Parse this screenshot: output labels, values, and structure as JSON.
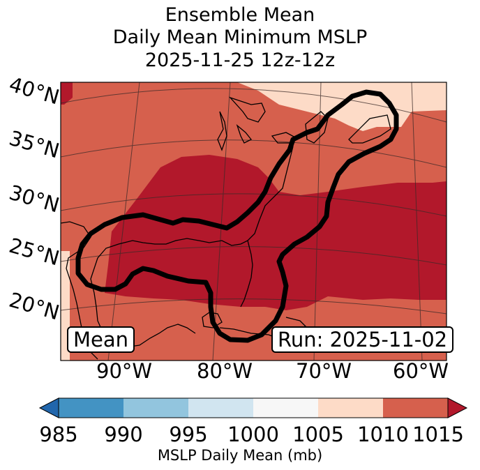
{
  "title": {
    "line1": "Ensemble Mean",
    "line2": "Daily Mean Minimum MSLP",
    "line3": "2025-11-25 12z-12z"
  },
  "map": {
    "latitude_labels": [
      "40°N",
      "35°N",
      "30°N",
      "25°N",
      "20°N"
    ],
    "longitude_labels": [
      "90°W",
      "80°W",
      "70°W",
      "60°W"
    ],
    "mean_box": "Mean",
    "run_box": "Run: 2025-11-02",
    "field_colors": {
      "1005-1010": "#fddbc7",
      "1010-1015": "#d6604d",
      "above-1015": "#b2182b"
    },
    "contour_color": "#000000"
  },
  "colorbar": {
    "label": "MSLP Daily Mean (mb)",
    "ticks": [
      "985",
      "990",
      "995",
      "1000",
      "1005",
      "1010",
      "1015"
    ],
    "colors": {
      "below": "#2166ac",
      "985-990": "#4393c3",
      "990-995": "#92c5de",
      "995-1000": "#d1e5f0",
      "1000-1005": "#f7f7f7",
      "1005-1010": "#fddbc7",
      "1010-1015": "#d6604d",
      "above": "#b2182b"
    }
  }
}
